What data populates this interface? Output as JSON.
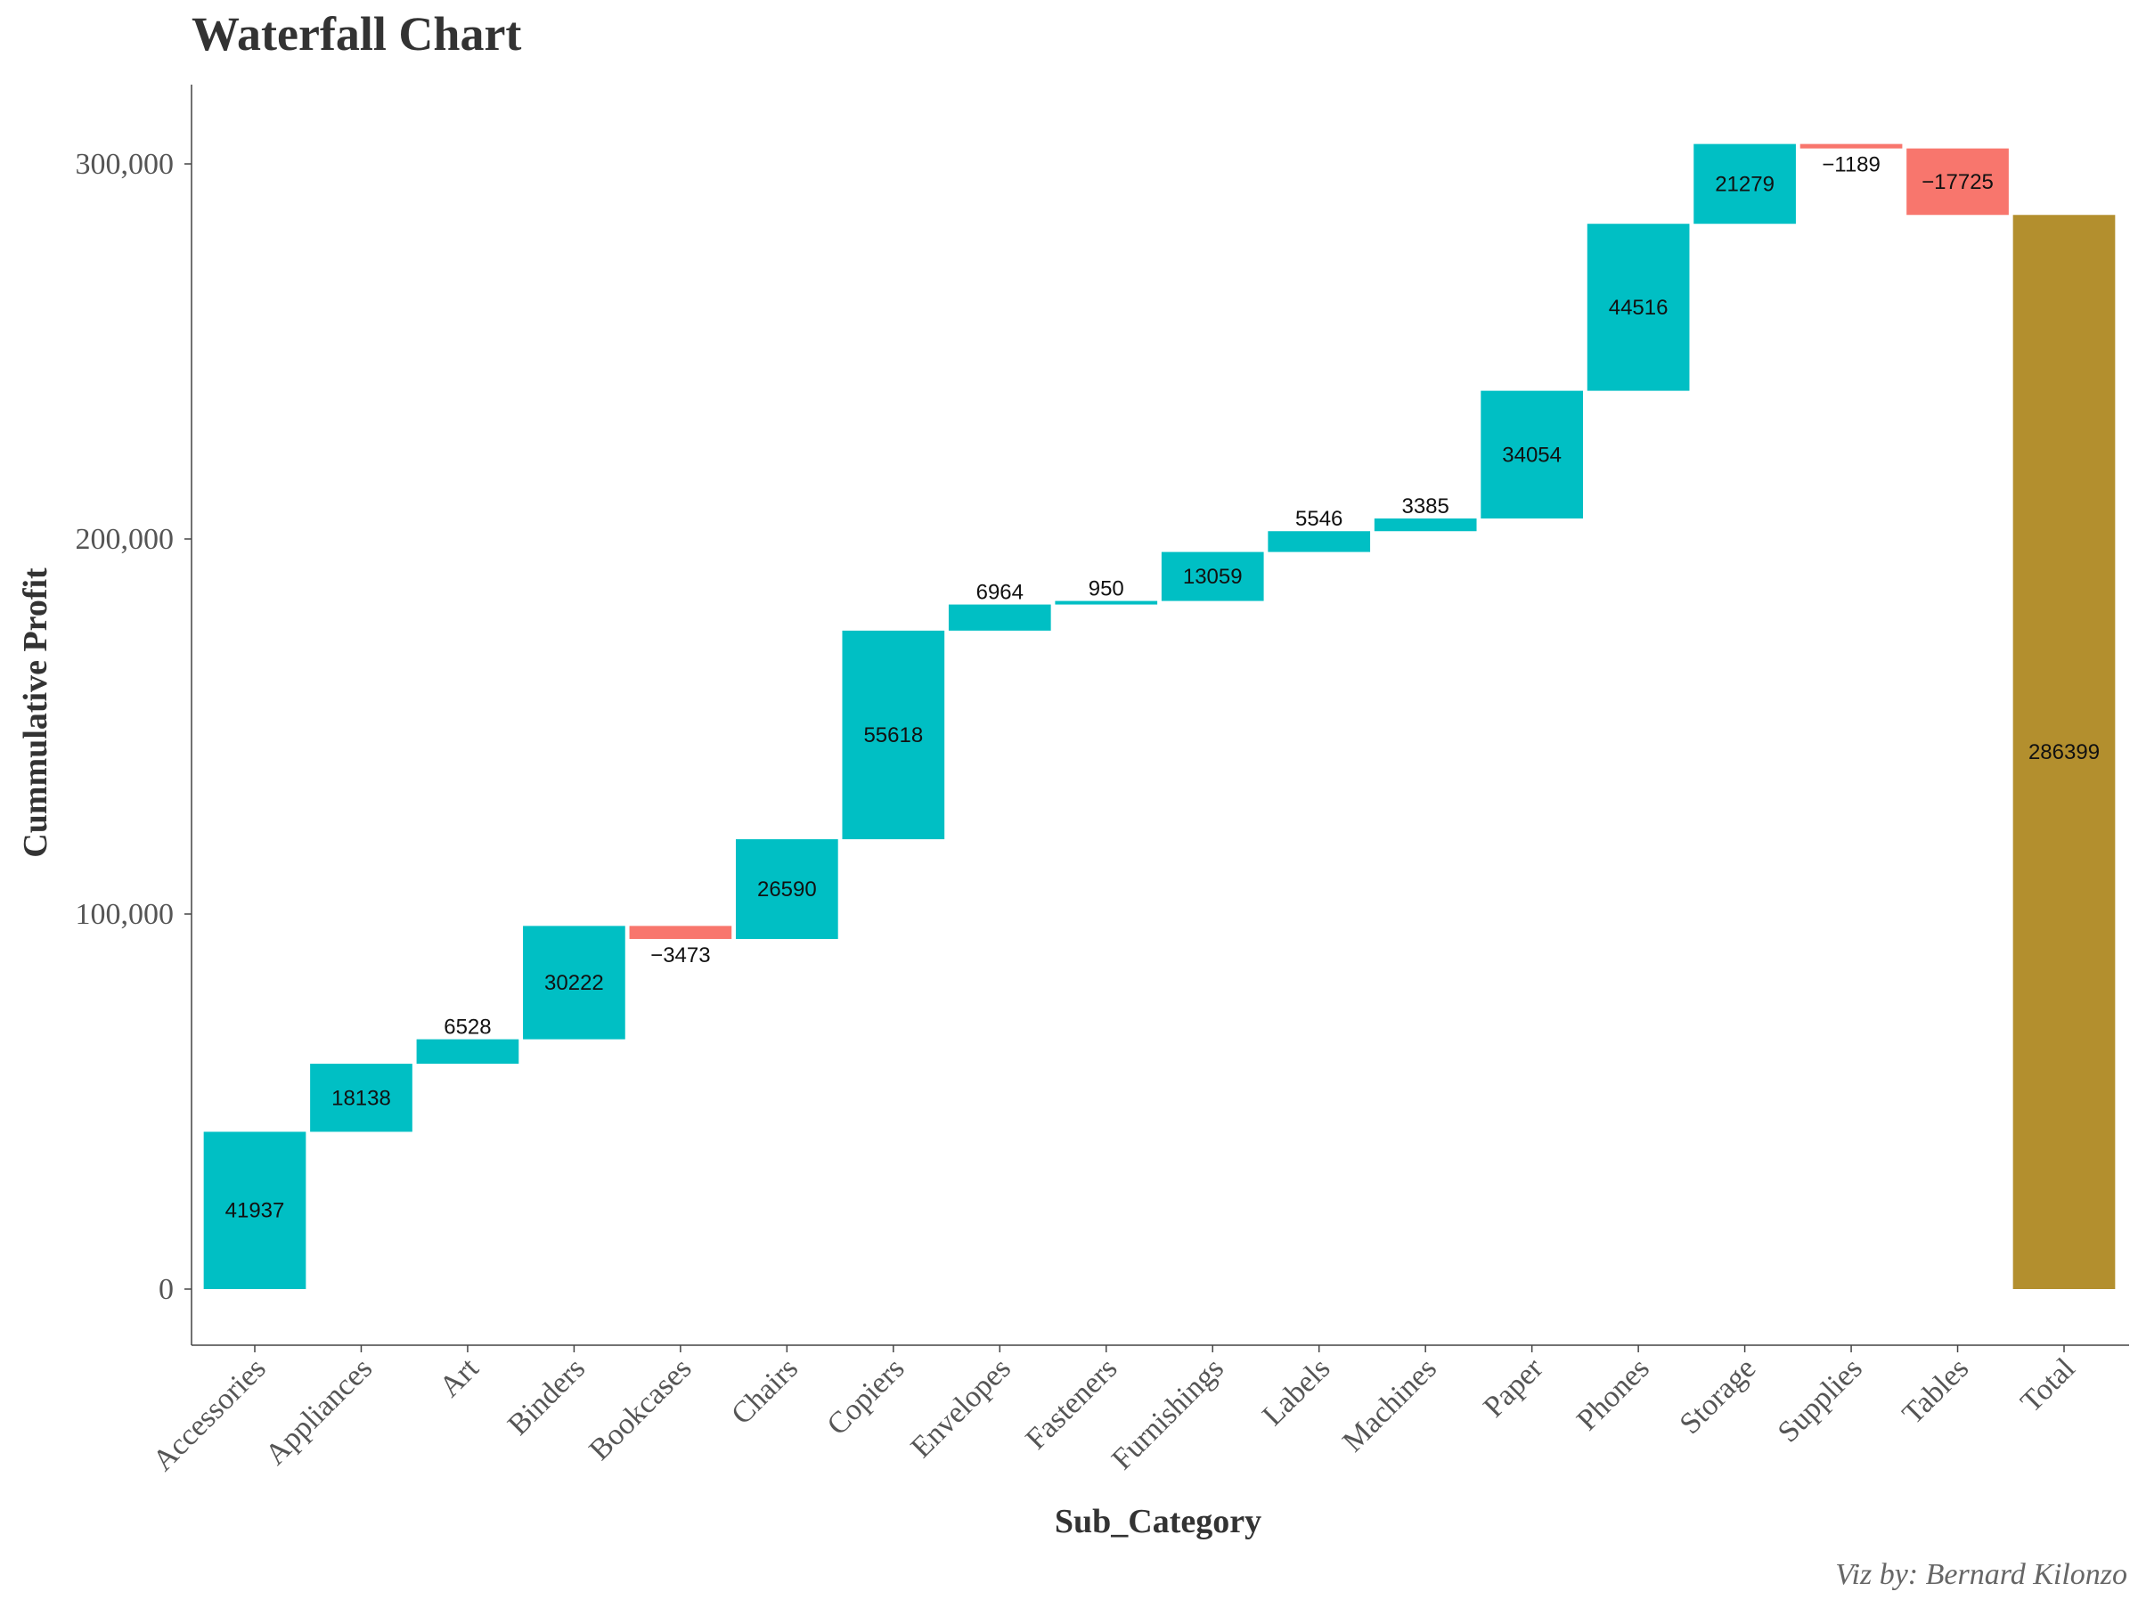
{
  "chart_data": {
    "type": "bar",
    "subtype": "waterfall",
    "title": "Waterfall Chart",
    "xlabel": "Sub_Category",
    "ylabel": "Cummulative Profit",
    "categories": [
      "Accessories",
      "Appliances",
      "Art",
      "Binders",
      "Bookcases",
      "Chairs",
      "Copiers",
      "Envelopes",
      "Fasteners",
      "Furnishings",
      "Labels",
      "Machines",
      "Paper",
      "Phones",
      "Storage",
      "Supplies",
      "Tables",
      "Total"
    ],
    "values": [
      41937,
      18138,
      6528,
      30222,
      -3473,
      26590,
      55618,
      6964,
      950,
      13059,
      5546,
      3385,
      34054,
      44516,
      21279,
      -1189,
      -17725,
      286399
    ],
    "value_labels": [
      "41937",
      "18138",
      "6528",
      "30222",
      "−3473",
      "26590",
      "55618",
      "6964",
      "950",
      "13059",
      "5546",
      "3385",
      "34054",
      "44516",
      "21279",
      "−1189",
      "−17725",
      "286399"
    ],
    "y_ticks": [
      0,
      100000,
      200000,
      300000
    ],
    "y_tick_labels": [
      "0",
      "100,000",
      "200,000",
      "300,000"
    ],
    "ylim": [
      -15000,
      320000
    ],
    "grid": false,
    "legend": "none",
    "colors": {
      "increase": "#00BFC4",
      "decrease": "#F8766D",
      "total": "#B38F2E",
      "total_label": "#FFFFFF",
      "label": "#111111"
    },
    "caption": "Viz by: Bernard Kilonzo"
  }
}
